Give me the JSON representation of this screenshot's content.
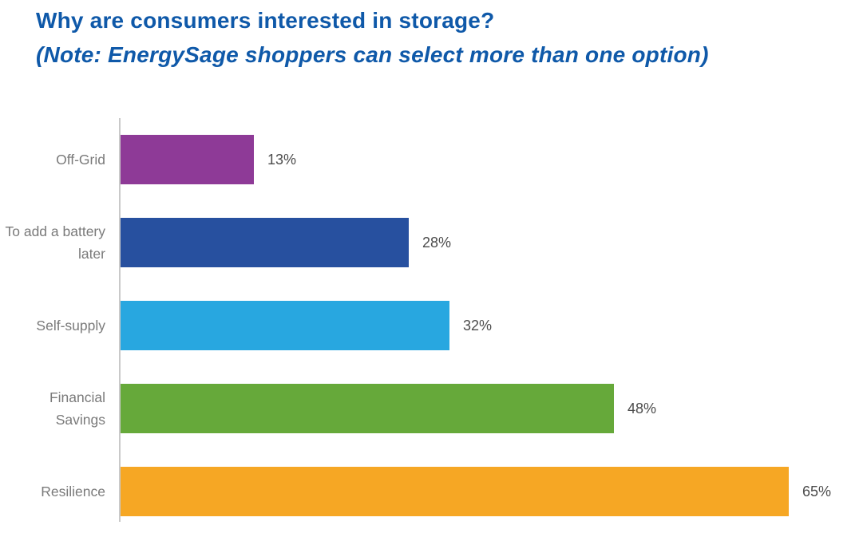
{
  "header": {
    "title": "Why are consumers interested in storage?",
    "subtitle": "(Note: EnergySage shoppers can select more than one option)",
    "title_color": "#0f59a9"
  },
  "chart_data": {
    "type": "bar",
    "orientation": "horizontal",
    "title": "Why are consumers interested in storage?",
    "subtitle": "(Note: EnergySage shoppers can select more than one option)",
    "categories": [
      "Off-Grid",
      "To add a battery later",
      "Self-supply",
      "Financial Savings",
      "Resilience"
    ],
    "values": [
      13,
      28,
      32,
      48,
      65
    ],
    "value_labels": [
      "13%",
      "28%",
      "32%",
      "48%",
      "65%"
    ],
    "value_suffix": "%",
    "bar_colors": [
      "#8e3a97",
      "#27509f",
      "#28a7e0",
      "#66a93a",
      "#f6a724"
    ],
    "xlim": [
      0,
      72.5
    ],
    "grid": false,
    "legend": false,
    "axis_line_color": "#c9c9c9",
    "category_label_color": "#7a7a7a",
    "value_label_color": "#4c4c4c"
  }
}
